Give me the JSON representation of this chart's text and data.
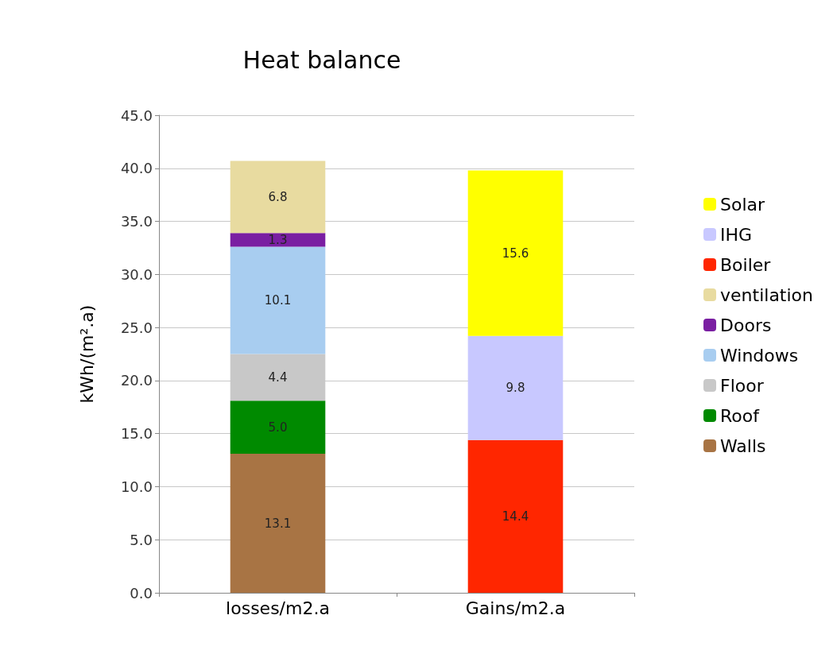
{
  "chart_data": {
    "type": "bar",
    "title": "Heat balance",
    "ylabel": "kWh/(m².a)",
    "categories": [
      "losses/m2.a",
      "Gains/m2.a"
    ],
    "stacked": true,
    "grid": "y",
    "legend": "right",
    "ylim": [
      0,
      45
    ],
    "yticks": [
      {
        "value": 0,
        "label": "0.0"
      },
      {
        "value": 5,
        "label": "5.0"
      },
      {
        "value": 10,
        "label": "10.0"
      },
      {
        "value": 15,
        "label": "15.0"
      },
      {
        "value": 20,
        "label": "20.0"
      },
      {
        "value": 25,
        "label": "25.0"
      },
      {
        "value": 30,
        "label": "30.0"
      },
      {
        "value": 35,
        "label": "35.0"
      },
      {
        "value": 40,
        "label": "40.0"
      },
      {
        "value": 45,
        "label": "45.0"
      }
    ],
    "series": [
      {
        "name": "Walls",
        "color": "#a87444",
        "values": [
          13.1,
          null
        ],
        "value_labels": [
          "13.1",
          null
        ]
      },
      {
        "name": "Roof",
        "color": "#008a00",
        "values": [
          5.0,
          null
        ],
        "value_labels": [
          "5.0",
          null
        ]
      },
      {
        "name": "Floor",
        "color": "#c8c8c8",
        "values": [
          4.4,
          null
        ],
        "value_labels": [
          "4.4",
          null
        ]
      },
      {
        "name": "Windows",
        "color": "#a8cdf0",
        "values": [
          10.1,
          null
        ],
        "value_labels": [
          "10.1",
          null
        ]
      },
      {
        "name": "Doors",
        "color": "#7a1fa2",
        "values": [
          1.3,
          null
        ],
        "value_labels": [
          "1.3",
          null
        ]
      },
      {
        "name": "ventilation",
        "color": "#e8dba0",
        "values": [
          6.8,
          null
        ],
        "value_labels": [
          "6.8",
          null
        ]
      },
      {
        "name": "Boiler",
        "color": "#ff2600",
        "values": [
          null,
          14.4
        ],
        "value_labels": [
          null,
          "14.4"
        ]
      },
      {
        "name": "IHG",
        "color": "#c8c8ff",
        "values": [
          null,
          9.8
        ],
        "value_labels": [
          null,
          "9.8"
        ]
      },
      {
        "name": "Solar",
        "color": "#ffff00",
        "values": [
          null,
          15.6
        ],
        "value_labels": [
          null,
          "15.6"
        ]
      }
    ]
  }
}
